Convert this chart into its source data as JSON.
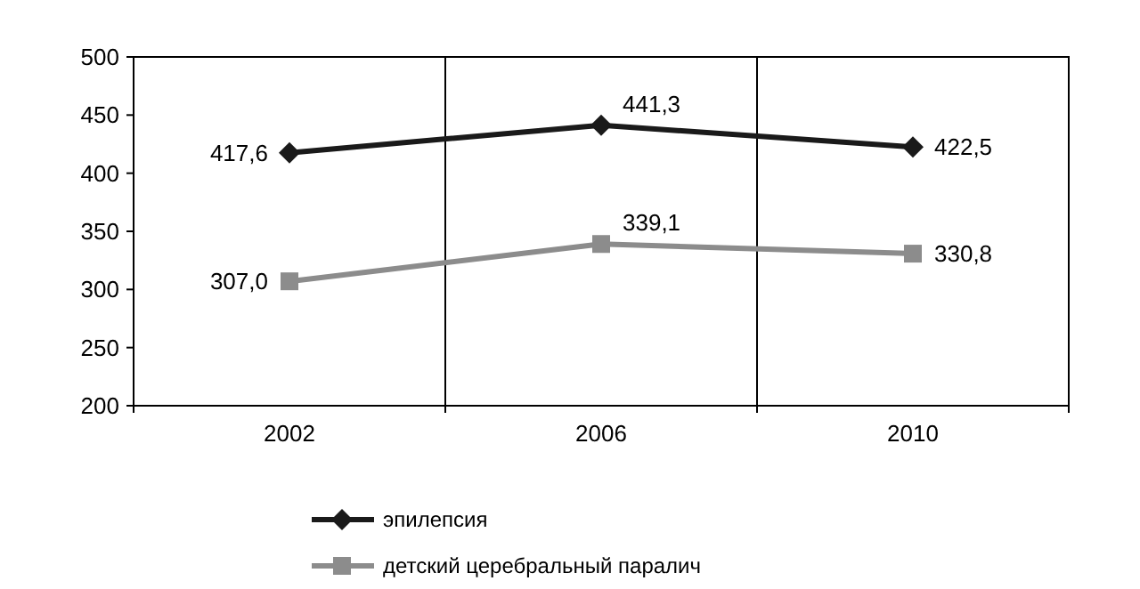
{
  "chart_data": {
    "type": "line",
    "categories": [
      "2002",
      "2006",
      "2010"
    ],
    "series": [
      {
        "name": "эпилепсия",
        "color": "#1a1a1a",
        "values": [
          417.6,
          441.3,
          422.5
        ],
        "value_labels": [
          "417,6",
          "441,3",
          "422,5"
        ],
        "marker": "diamond"
      },
      {
        "name": "детский церебральный паралич",
        "color": "#8c8c8c",
        "values": [
          307.0,
          339.1,
          330.8
        ],
        "value_labels": [
          "307,0",
          "339,1",
          "330,8"
        ],
        "marker": "square"
      }
    ],
    "ylim": [
      200,
      500
    ],
    "yticks": [
      200,
      250,
      300,
      350,
      400,
      450,
      500
    ],
    "grid": "x",
    "legend": "bottom"
  }
}
